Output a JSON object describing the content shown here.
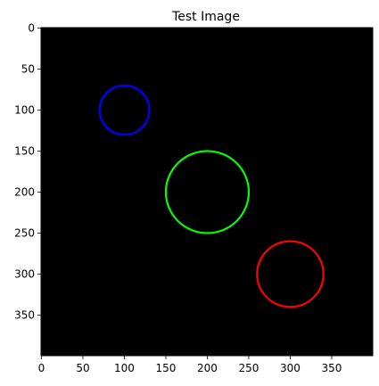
{
  "chart_data": {
    "type": "image",
    "title": "Test Image",
    "background_color": "#000000",
    "image_size": [
      400,
      400
    ],
    "xlim": [
      0,
      399
    ],
    "ylim": [
      399,
      0
    ],
    "xticks": [
      0,
      50,
      100,
      150,
      200,
      250,
      300,
      350
    ],
    "yticks": [
      0,
      50,
      100,
      150,
      200,
      250,
      300,
      350
    ],
    "circles": [
      {
        "name": "blue-circle",
        "cx": 100,
        "cy": 100,
        "r": 30,
        "color": "#0000ff"
      },
      {
        "name": "green-circle",
        "cx": 200,
        "cy": 200,
        "r": 50,
        "color": "#00ff00"
      },
      {
        "name": "red-circle",
        "cx": 300,
        "cy": 300,
        "r": 40,
        "color": "#ff0000"
      }
    ]
  }
}
